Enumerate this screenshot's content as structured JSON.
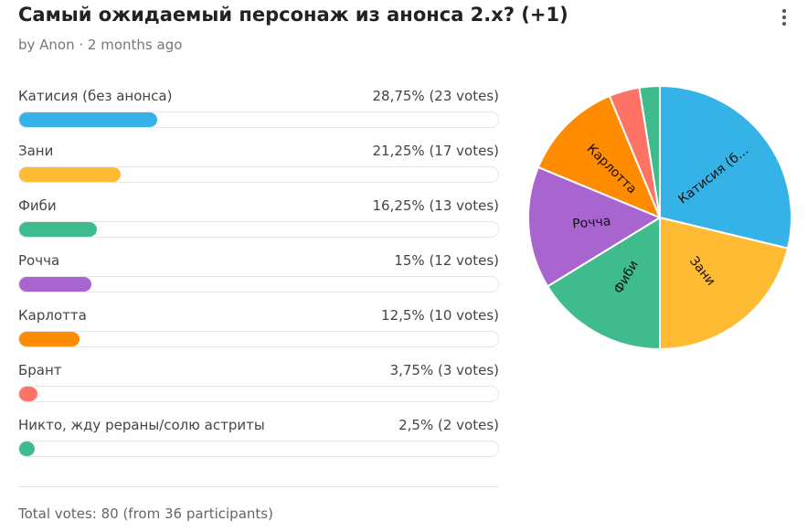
{
  "poll": {
    "title": "Самый ожидаемый персонаж из анонса 2.х? (+1)",
    "meta": "by Anon · 2 months ago",
    "total": "Total votes: 80 (from 36 participants)",
    "menu_icon": "more-vertical-icon"
  },
  "options": [
    {
      "label": "Катисия (без анонса)",
      "value_text": "28,75% (23 votes)",
      "pie_label": "Катисия (б...",
      "color": "#36b3e6"
    },
    {
      "label": "Зани",
      "value_text": "21,25% (17 votes)",
      "pie_label": "Зани",
      "color": "#ffbb33"
    },
    {
      "label": "Фиби",
      "value_text": "16,25% (13 votes)",
      "pie_label": "Фиби",
      "color": "#40bb8e"
    },
    {
      "label": "Рочча",
      "value_text": "15% (12 votes)",
      "pie_label": "Рочча",
      "color": "#a865cf"
    },
    {
      "label": "Карлотта",
      "value_text": "12,5% (10 votes)",
      "pie_label": "Карлотта",
      "color": "#ff8c00"
    },
    {
      "label": "Брант",
      "value_text": "3,75% (3 votes)",
      "pie_label": "",
      "color": "#ff7366"
    },
    {
      "label": "Никто, жду рераны/солю астриты",
      "value_text": "2,5% (2 votes)",
      "pie_label": "",
      "color": "#40bb8e"
    }
  ],
  "chart_data": {
    "type": "pie",
    "categories": [
      "Катисия (без анонса)",
      "Зани",
      "Фиби",
      "Рочча",
      "Карлотта",
      "Брант",
      "Никто, жду рераны/солю астриты"
    ],
    "values": [
      23,
      17,
      13,
      12,
      10,
      3,
      2
    ],
    "percentages": [
      28.75,
      21.25,
      16.25,
      15,
      12.5,
      3.75,
      2.5
    ],
    "total_votes": 80,
    "participants": 36
  }
}
